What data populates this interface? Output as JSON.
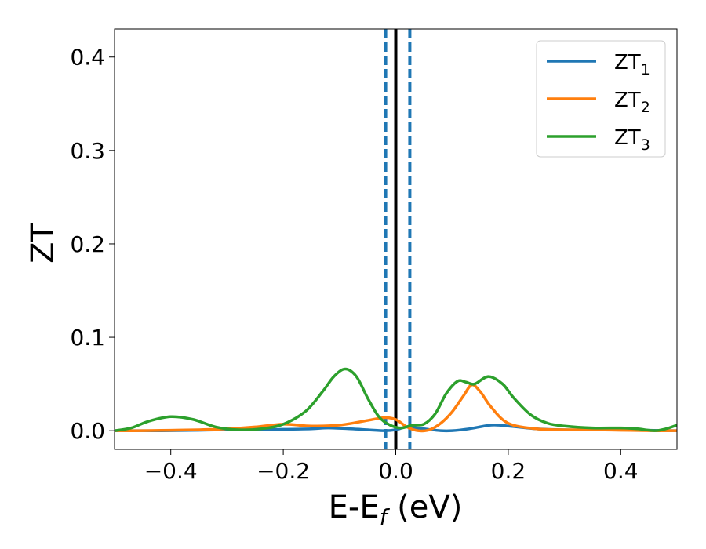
{
  "chart_data": {
    "type": "line",
    "xlabel": "E-E",
    "xlabel_sub": "f",
    "xlabel_unit": " (eV)",
    "ylabel": "ZT",
    "xlim": [
      -0.5,
      0.5
    ],
    "ylim": [
      -0.02,
      0.43
    ],
    "xticks": [
      -0.4,
      -0.2,
      0.0,
      0.2,
      0.4
    ],
    "xtick_labels": [
      "−0.4",
      "−0.2",
      "0.0",
      "0.2",
      "0.4"
    ],
    "yticks": [
      0.0,
      0.1,
      0.2,
      0.3,
      0.4
    ],
    "ytick_labels": [
      "0.0",
      "0.1",
      "0.2",
      "0.3",
      "0.4"
    ],
    "grid": false,
    "legend": {
      "position": "top-right"
    },
    "series": [
      {
        "name": "ZT",
        "sub": "1",
        "color": "#1f77b4",
        "x": [
          -0.5,
          -0.45,
          -0.4,
          -0.35,
          -0.3,
          -0.25,
          -0.2,
          -0.15,
          -0.12,
          -0.08,
          -0.05,
          -0.02,
          0.0,
          0.02,
          0.05,
          0.08,
          0.1,
          0.13,
          0.17,
          0.2,
          0.25,
          0.3,
          0.35,
          0.4,
          0.45,
          0.5
        ],
        "y": [
          0.0,
          0.0,
          0.0,
          0.0005,
          0.001,
          0.001,
          0.0015,
          0.002,
          0.003,
          0.002,
          0.001,
          0.0,
          0.001,
          0.004,
          0.002,
          0.0,
          0.0,
          0.002,
          0.006,
          0.005,
          0.002,
          0.001,
          0.001,
          0.0015,
          0.0005,
          0.0
        ]
      },
      {
        "name": "ZT",
        "sub": "2",
        "color": "#ff7f0e",
        "x": [
          -0.5,
          -0.45,
          -0.4,
          -0.35,
          -0.3,
          -0.25,
          -0.2,
          -0.15,
          -0.1,
          -0.05,
          -0.02,
          0.0,
          0.02,
          0.04,
          0.06,
          0.08,
          0.1,
          0.12,
          0.135,
          0.15,
          0.17,
          0.2,
          0.25,
          0.3,
          0.35,
          0.4,
          0.45,
          0.5
        ],
        "y": [
          0.0,
          0.0,
          0.0005,
          0.001,
          0.002,
          0.004,
          0.007,
          0.005,
          0.006,
          0.011,
          0.014,
          0.012,
          0.004,
          0.0,
          0.001,
          0.008,
          0.02,
          0.037,
          0.049,
          0.042,
          0.025,
          0.008,
          0.002,
          0.001,
          0.001,
          0.0005,
          0.0,
          0.0
        ]
      },
      {
        "name": "ZT",
        "sub": "3",
        "color": "#2ca02c",
        "x": [
          -0.5,
          -0.47,
          -0.44,
          -0.4,
          -0.36,
          -0.32,
          -0.28,
          -0.24,
          -0.2,
          -0.16,
          -0.13,
          -0.11,
          -0.09,
          -0.07,
          -0.05,
          -0.03,
          -0.01,
          0.01,
          0.03,
          0.05,
          0.07,
          0.09,
          0.11,
          0.125,
          0.14,
          0.165,
          0.19,
          0.21,
          0.24,
          0.27,
          0.3,
          0.35,
          0.4,
          0.43,
          0.46,
          0.48,
          0.5
        ],
        "y": [
          0.0,
          0.003,
          0.01,
          0.015,
          0.012,
          0.004,
          0.001,
          0.002,
          0.007,
          0.021,
          0.042,
          0.058,
          0.066,
          0.058,
          0.035,
          0.015,
          0.006,
          0.003,
          0.006,
          0.007,
          0.018,
          0.04,
          0.053,
          0.052,
          0.05,
          0.058,
          0.05,
          0.035,
          0.017,
          0.008,
          0.005,
          0.003,
          0.003,
          0.002,
          0.0,
          0.002,
          0.006
        ]
      }
    ],
    "vlines": [
      {
        "x": -0.018,
        "color": "#1f77b4",
        "style": "dashed"
      },
      {
        "x": 0.0,
        "color": "#000000",
        "style": "solid"
      },
      {
        "x": 0.025,
        "color": "#1f77b4",
        "style": "dashed"
      }
    ]
  }
}
